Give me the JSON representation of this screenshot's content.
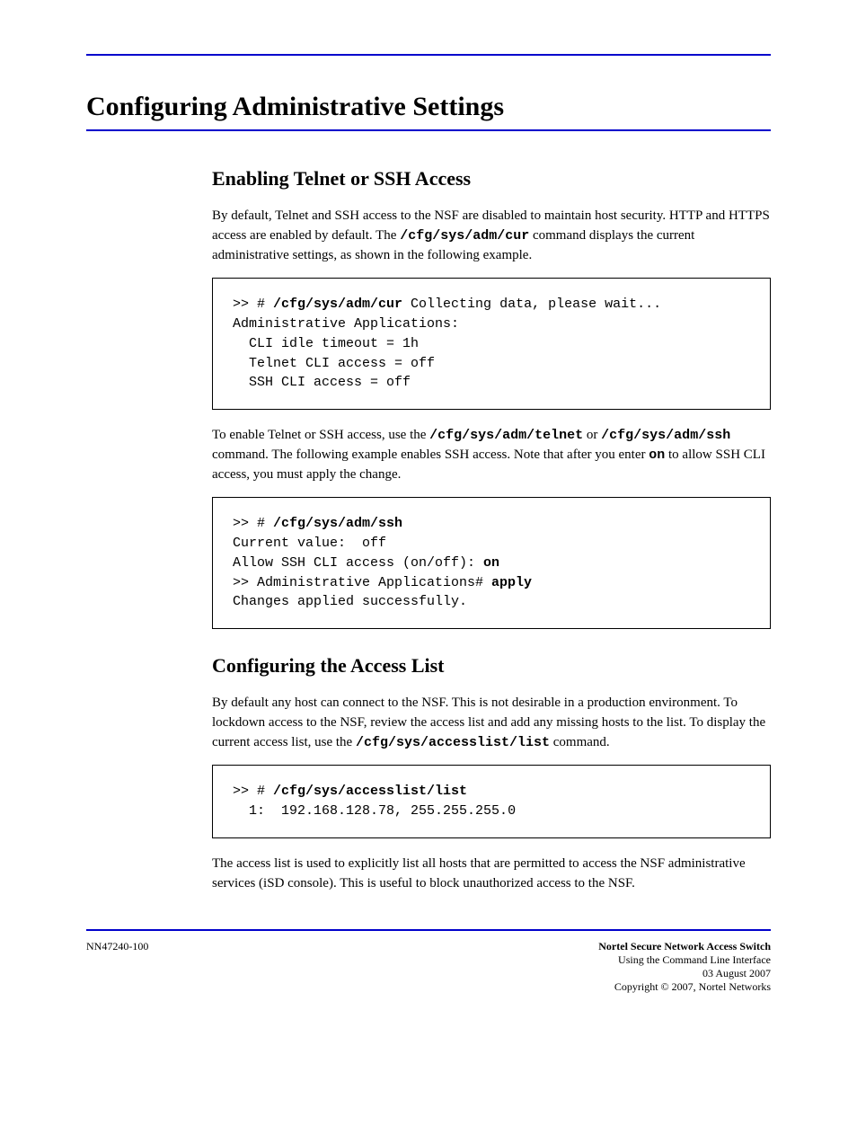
{
  "header": {
    "rule_color": "#0000cc"
  },
  "title": "Configuring Administrative Settings",
  "s1": {
    "heading": "Enabling Telnet or SSH Access",
    "p1_pre": "By default, Telnet and SSH access to the NSF are disabled to maintain host security. HTTP and HTTPS access are enabled by default. The ",
    "p1_cmd": "/cfg/sys/adm/cur",
    "p1_post": " command displays the current administrative settings, as shown in the following example.",
    "codebox1": {
      "l1_pre": ">> # ",
      "l1_cmd": "/cfg/sys/adm/cur",
      "l1_post": " Collecting data, please wait...",
      "l2": "Administrative Applications:",
      "l3": "  CLI idle timeout = 1h",
      "l4": "  Telnet CLI access = off",
      "l5": "  SSH CLI access = off"
    },
    "p2_pre": "To enable Telnet or SSH access, use the ",
    "p2_cmd1": "/cfg/sys/adm/telnet",
    "p2_mid": " or ",
    "p2_cmd2": "/cfg/sys/adm/ssh",
    "p2_post1": " command. The following example enables SSH access. Note that after you enter ",
    "p2_on": "on",
    "p2_post2": " to allow SSH CLI access, you must apply the change.",
    "codebox2": {
      "l1_pre": ">> # ",
      "l1_cmd": "/cfg/sys/adm/ssh",
      "l2": "Current value:  off",
      "l3_pre": "Allow SSH CLI access (on/off): ",
      "l3_cmd": "on",
      "l4_pre": ">> Administrative Applications# ",
      "l4_cmd": "apply",
      "l5": "Changes applied successfully."
    }
  },
  "s2": {
    "heading": "Configuring the Access List",
    "p1_pre": "By default any host can connect to the NSF. This is not desirable in a production environment. To lockdown access to the NSF, review the access list and add any missing hosts to the list. To display the current access list, use the ",
    "p1_cmd": "/cfg/sys/accesslist/list",
    "p1_post": " command.",
    "codebox1": {
      "l1_pre": ">> # ",
      "l1_cmd": "/cfg/sys/accesslist/list",
      "l2": "  1:  192.168.128.78, 255.255.255.0"
    },
    "p2": "The access list is used to explicitly list all hosts that are permitted to access the NSF administrative services (iSD console). This is useful to block unauthorized access to the NSF."
  },
  "footer": {
    "left": "NN47240-100",
    "title": "Nortel Secure Network Access Switch",
    "sub1": "Using the Command Line Interface",
    "sub2": "03 August 2007",
    "copyright": "Copyright © 2007, Nortel Networks"
  }
}
